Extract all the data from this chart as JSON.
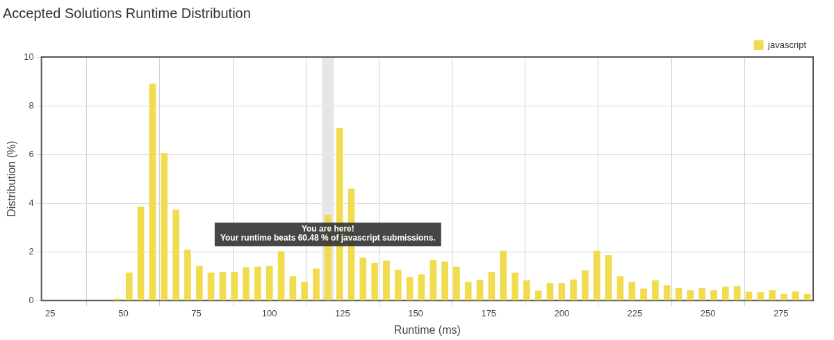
{
  "chart_data": {
    "type": "bar",
    "title": "Accepted Solutions Runtime Distribution",
    "xlabel": "Runtime (ms)",
    "ylabel": "Distribution (%)",
    "x": [
      48,
      52,
      56,
      60,
      64,
      68,
      72,
      76,
      80,
      84,
      88,
      92,
      96,
      100,
      104,
      105.5,
      108,
      112,
      116,
      120,
      124,
      128,
      132,
      136,
      140,
      144,
      148,
      152,
      156,
      160,
      164,
      168,
      170.5,
      172,
      176,
      180,
      184,
      188,
      192,
      196,
      200,
      204,
      208,
      212,
      216,
      220,
      224,
      228,
      232,
      236,
      240,
      244,
      248,
      252,
      256,
      260,
      264,
      268,
      272,
      276,
      280,
      284
    ],
    "series": [
      {
        "name": "javascript",
        "color": "#f0dc4e",
        "values": [
          0.07,
          1.14,
          3.85,
          8.89,
          6.04,
          3.72,
          2.08,
          1.41,
          1.14,
          1.16,
          1.16,
          1.36,
          1.38,
          1.41,
          2.02,
          0.05,
          0.99,
          0.75,
          1.3,
          3.51,
          7.08,
          4.58,
          1.75,
          1.54,
          1.63,
          1.25,
          0.96,
          1.07,
          1.66,
          1.59,
          1.38,
          0.75,
          0.05,
          0.84,
          1.17,
          2.03,
          1.14,
          0.82,
          0.4,
          0.71,
          0.71,
          0.85,
          1.23,
          2.03,
          1.85,
          0.99,
          0.75,
          0.48,
          0.82,
          0.62,
          0.51,
          0.42,
          0.51,
          0.42,
          0.55,
          0.58,
          0.35,
          0.33,
          0.42,
          0.26,
          0.37,
          0.26
        ]
      }
    ],
    "xlim": [
      22,
      286
    ],
    "xticks": [
      25,
      50,
      75,
      100,
      125,
      150,
      175,
      200,
      225,
      250,
      275
    ],
    "ylim": [
      0,
      10
    ],
    "yticks": [
      0,
      2,
      4,
      6,
      8,
      10
    ],
    "grid": true,
    "legend": "top right",
    "bands": [
      {
        "axis": "x",
        "from": 118,
        "to": 122,
        "color": "#e6e6e6"
      }
    ],
    "annotations": [
      "You are here!\nYour runtime beats 60.48 % of javascript submissions."
    ]
  }
}
